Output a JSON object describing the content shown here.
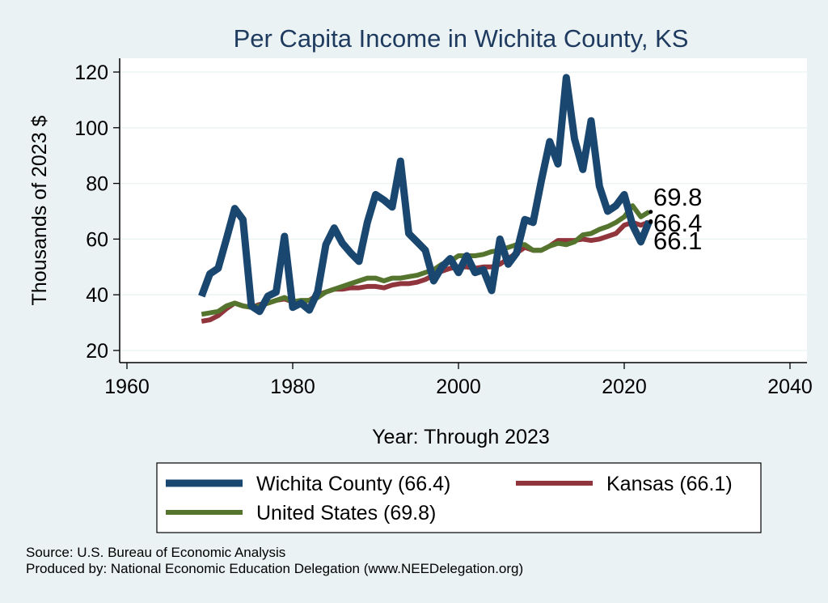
{
  "chart_data": {
    "type": "line",
    "title": "Per Capita Income in Wichita County, KS",
    "xlabel": "Year: Through 2023",
    "ylabel": "Thousands of 2023 $",
    "xlim": [
      1960,
      2040
    ],
    "ylim": [
      20,
      120
    ],
    "x_ticks": [
      "1960",
      "1980",
      "2000",
      "2020",
      "2040"
    ],
    "y_ticks": [
      "20",
      "40",
      "60",
      "80",
      "100",
      "120"
    ],
    "x": [
      1969,
      1970,
      1971,
      1972,
      1973,
      1974,
      1975,
      1976,
      1977,
      1978,
      1979,
      1980,
      1981,
      1982,
      1983,
      1984,
      1985,
      1986,
      1987,
      1988,
      1989,
      1990,
      1991,
      1992,
      1993,
      1994,
      1995,
      1996,
      1997,
      1998,
      1999,
      2000,
      2001,
      2002,
      2003,
      2004,
      2005,
      2006,
      2007,
      2008,
      2009,
      2010,
      2011,
      2012,
      2013,
      2014,
      2015,
      2016,
      2017,
      2018,
      2019,
      2020,
      2021,
      2022,
      2023
    ],
    "series": [
      {
        "name": "Wichita County",
        "legend": "Wichita County (66.4)",
        "color": "#1a476f",
        "values": [
          39.5,
          47.5,
          49.5,
          60,
          71,
          67,
          36,
          34,
          39.5,
          41,
          61,
          35.5,
          37,
          34.5,
          41,
          58,
          64,
          58.5,
          55,
          52,
          66,
          76,
          74,
          71.5,
          88,
          62,
          59,
          56,
          45,
          50,
          53,
          48,
          54,
          48,
          49,
          41.5,
          60,
          51,
          55,
          67,
          66,
          81,
          95,
          87,
          118,
          96,
          85,
          102.5,
          79,
          70,
          72,
          76,
          65,
          59,
          66.4
        ]
      },
      {
        "name": "Kansas",
        "legend": "Kansas (66.1)",
        "color": "#90353b",
        "values": [
          30.5,
          31,
          32.5,
          35,
          37,
          36,
          35.5,
          36.5,
          37,
          38,
          38.5,
          37.5,
          37.5,
          38,
          40,
          41,
          42,
          42,
          42.5,
          42.5,
          43,
          43,
          42.5,
          43.5,
          44,
          44,
          44.5,
          45.5,
          47,
          48.5,
          49.5,
          50,
          50,
          49.5,
          50,
          50,
          51,
          53,
          55,
          57,
          56,
          56,
          57.5,
          59.5,
          59.5,
          59.5,
          60,
          59.5,
          60,
          61,
          62,
          65,
          66,
          65,
          66.1
        ]
      },
      {
        "name": "United States",
        "legend": "United States (69.8)",
        "color": "#55752f",
        "values": [
          33,
          33.5,
          34,
          36,
          37,
          36,
          35.5,
          36,
          37,
          38,
          39,
          37.5,
          38,
          38,
          39,
          41,
          42,
          43,
          44,
          45,
          46,
          46,
          45,
          46,
          46,
          46.5,
          47,
          48,
          49,
          51,
          52,
          54,
          54,
          54,
          54.5,
          55.5,
          56,
          57,
          58,
          58,
          56,
          56,
          57.5,
          58.5,
          58,
          59,
          61.5,
          62,
          63.5,
          64.5,
          66,
          68,
          72,
          68,
          69.8
        ]
      }
    ],
    "end_labels": [
      "69.8",
      "66.4",
      "66.1"
    ]
  },
  "legend": {
    "items": [
      "Wichita County (66.4)",
      "Kansas (66.1)",
      "United States (69.8)"
    ]
  },
  "footer": {
    "source": "Source: U.S. Bureau of Economic Analysis",
    "produced": "Produced by: National Economic Education Delegation (www.NEEDelegation.org)"
  }
}
